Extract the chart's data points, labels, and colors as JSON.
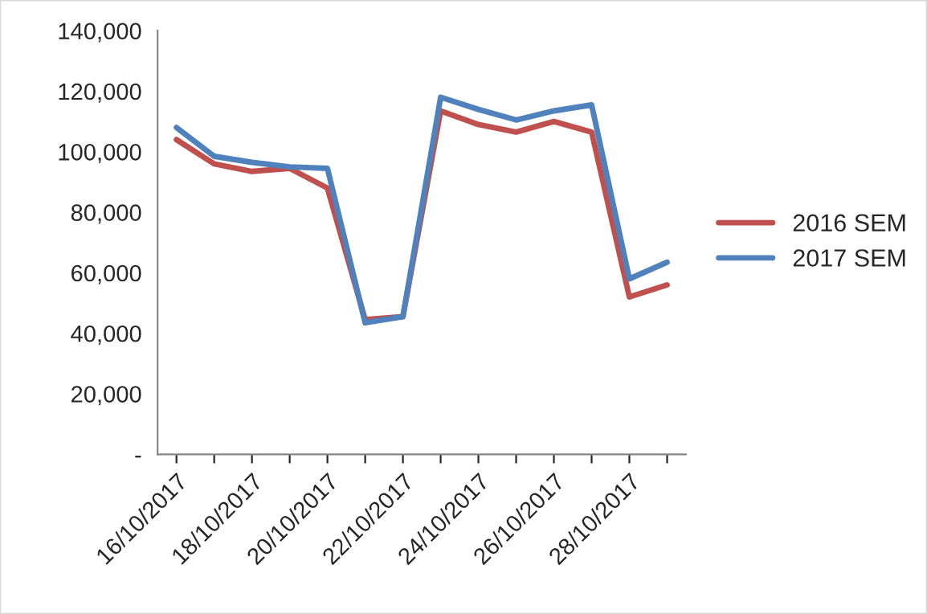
{
  "chart_data": {
    "type": "line",
    "categories": [
      "16/10/2017",
      null,
      "18/10/2017",
      null,
      "20/10/2017",
      null,
      "22/10/2017",
      null,
      "24/10/2017",
      null,
      "26/10/2017",
      null,
      "28/10/2017",
      null
    ],
    "series": [
      {
        "name": "2016 SEM",
        "color": "#c0504d",
        "values": [
          104000,
          96000,
          93500,
          94500,
          88000,
          44500,
          45500,
          113500,
          109000,
          106500,
          110000,
          106500,
          52000,
          56000
        ]
      },
      {
        "name": "2017 SEM",
        "color": "#4f81bd",
        "values": [
          108000,
          98500,
          96500,
          95000,
          94500,
          43500,
          45500,
          118000,
          114000,
          110500,
          113500,
          115500,
          58000,
          63500
        ]
      }
    ],
    "ylim": [
      0,
      140000
    ],
    "yticks": [
      {
        "value": 0,
        "label": "-"
      },
      {
        "value": 20000,
        "label": "20,000"
      },
      {
        "value": 40000,
        "label": "40,000"
      },
      {
        "value": 60000,
        "label": "60,000"
      },
      {
        "value": 80000,
        "label": "80,000"
      },
      {
        "value": 100000,
        "label": "100,000"
      },
      {
        "value": 120000,
        "label": "120,000"
      },
      {
        "value": 140000,
        "label": "140,000"
      }
    ],
    "grid": false,
    "legend": "right",
    "marker": "none",
    "line_style": "solid"
  }
}
